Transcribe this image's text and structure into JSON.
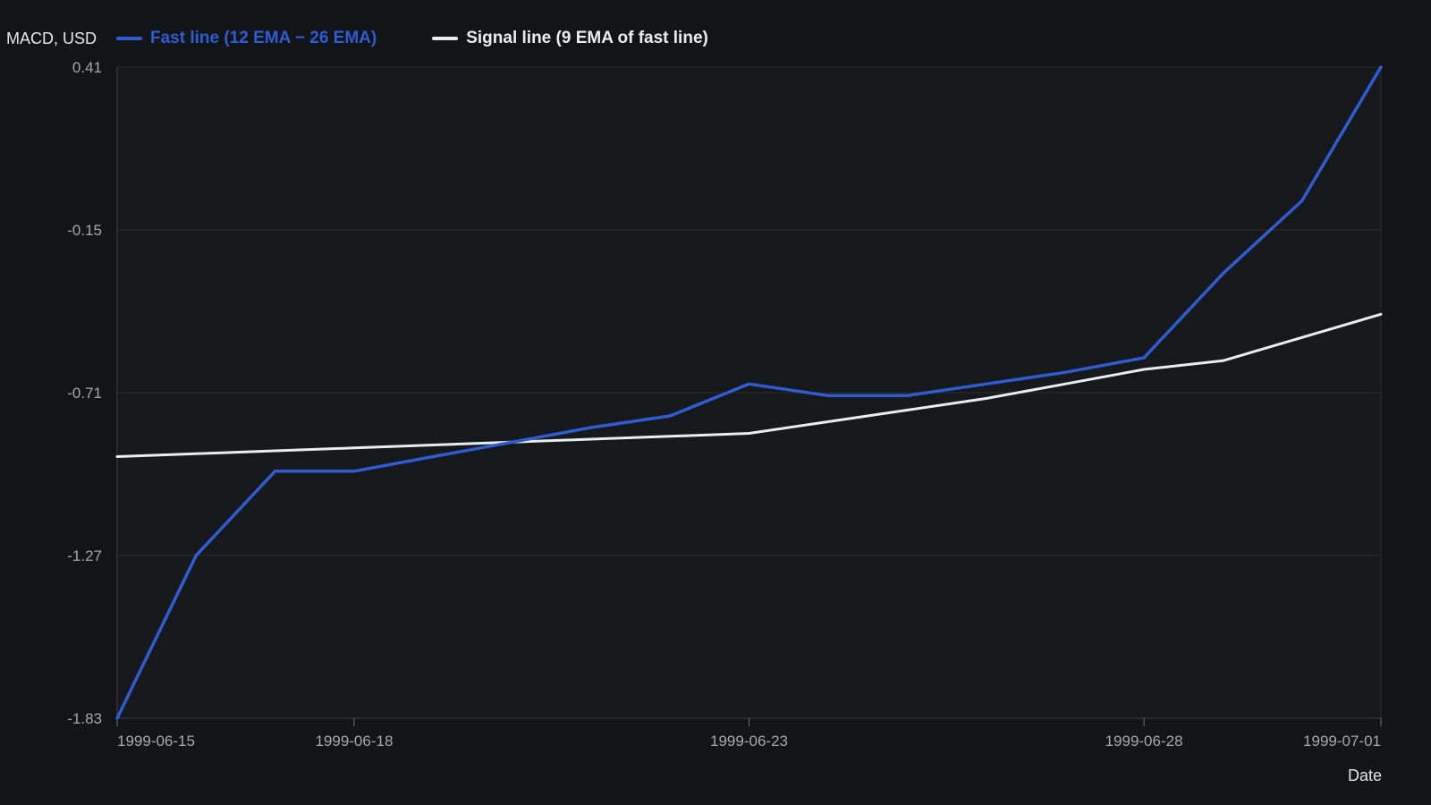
{
  "chart_data": {
    "type": "line",
    "ylabel": "MACD, USD",
    "xlabel": "Date",
    "y_ticks": [
      "0.41",
      "-0.15",
      "-0.71",
      "-1.27",
      "-1.83"
    ],
    "ylim": [
      -1.83,
      0.41
    ],
    "x_ticks": [
      "1999-06-15",
      "1999-06-18",
      "1999-06-23",
      "1999-06-28",
      "1999-07-01"
    ],
    "xlim": [
      "1999-06-15",
      "1999-07-01"
    ],
    "grid": true,
    "legend_position": "top-left",
    "x": [
      "1999-06-15",
      "1999-06-16",
      "1999-06-17",
      "1999-06-18",
      "1999-06-19",
      "1999-06-20",
      "1999-06-21",
      "1999-06-22",
      "1999-06-23",
      "1999-06-24",
      "1999-06-25",
      "1999-06-26",
      "1999-06-27",
      "1999-06-28",
      "1999-06-29",
      "1999-06-30",
      "1999-07-01"
    ],
    "series": [
      {
        "name": "Fast line (12 EMA − 26 EMA)",
        "color": "#2f5bd3",
        "values": [
          -1.83,
          -1.27,
          -0.98,
          -0.98,
          -0.93,
          -0.88,
          -0.83,
          -0.79,
          -0.68,
          -0.72,
          -0.72,
          -0.68,
          -0.64,
          -0.59,
          -0.3,
          -0.05,
          0.41
        ]
      },
      {
        "name": "Signal line (9 EMA of fast line)",
        "color": "#ececec",
        "values": [
          -0.93,
          -0.92,
          -0.91,
          -0.9,
          -0.89,
          -0.88,
          -0.87,
          -0.86,
          -0.85,
          -0.81,
          -0.77,
          -0.73,
          -0.68,
          -0.63,
          -0.6,
          -0.52,
          -0.44
        ]
      }
    ],
    "colors": {
      "background": "#131417",
      "plot_background": "#17181c",
      "grid": "#2b2d31",
      "tick_text": "#a6a8ad",
      "label_text": "#e6e6e6"
    }
  }
}
